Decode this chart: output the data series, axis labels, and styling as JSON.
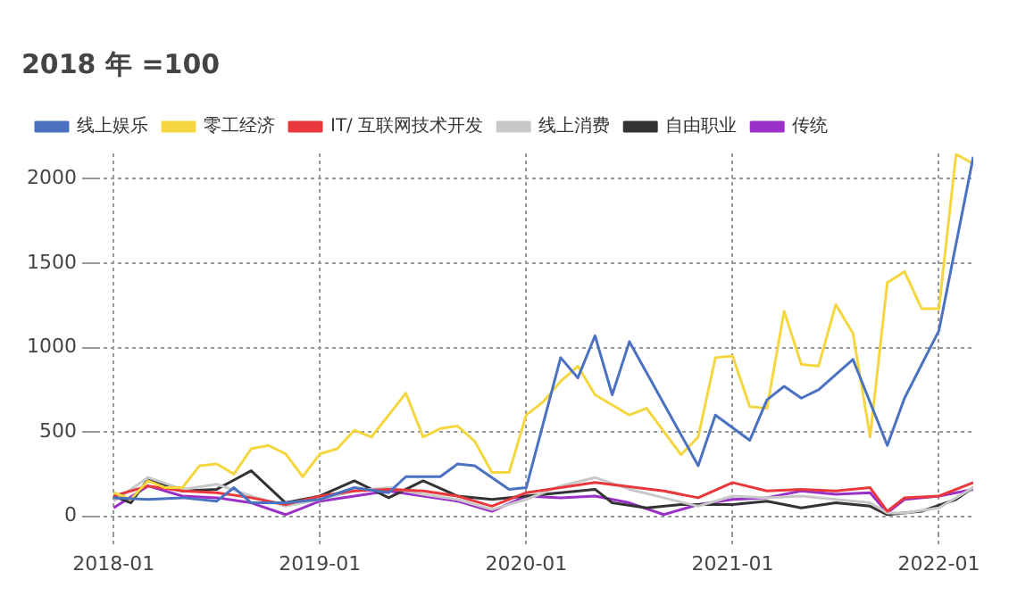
{
  "chart_data": {
    "type": "line",
    "title": "2018 年 =100",
    "legend": "top",
    "grid": true,
    "marker": "none",
    "line_style": "solid",
    "xlim": [
      "2017-12",
      "2022-03"
    ],
    "xticks": [
      "2018-01",
      "2019-01",
      "2020-01",
      "2021-01",
      "2022-01"
    ],
    "ylim": [
      -100,
      2150
    ],
    "yticks": [
      0,
      500,
      1000,
      1500,
      2000
    ],
    "series": [
      {
        "name": "线上娱乐",
        "color": "#4a72c0",
        "x": [
          "2018-01",
          "2018-03",
          "2018-05",
          "2018-07",
          "2018-08",
          "2018-09",
          "2018-11",
          "2019-01",
          "2019-03",
          "2019-05",
          "2019-06",
          "2019-08",
          "2019-09",
          "2019-10",
          "2019-12",
          "2020-01",
          "2020-03",
          "2020-04",
          "2020-05",
          "2020-06",
          "2020-07",
          "2020-11",
          "2020-12",
          "2021-02",
          "2021-03",
          "2021-04",
          "2021-05",
          "2021-06",
          "2021-08",
          "2021-10",
          "2021-11",
          "2022-01",
          "2022-03"
        ],
        "values": [
          110,
          100,
          110,
          90,
          170,
          80,
          80,
          100,
          170,
          140,
          235,
          235,
          310,
          300,
          160,
          170,
          940,
          820,
          1070,
          720,
          1035,
          300,
          600,
          450,
          690,
          770,
          700,
          750,
          930,
          420,
          700,
          1100,
          2130
        ]
      },
      {
        "name": "零工经济",
        "color": "#f5d63f",
        "x": [
          "2018-01",
          "2018-02",
          "2018-03",
          "2018-04",
          "2018-05",
          "2018-06",
          "2018-07",
          "2018-08",
          "2018-09",
          "2018-10",
          "2018-11",
          "2018-12",
          "2019-01",
          "2019-02",
          "2019-03",
          "2019-04",
          "2019-06",
          "2019-07",
          "2019-08",
          "2019-09",
          "2019-10",
          "2019-11",
          "2019-12",
          "2020-01",
          "2020-02",
          "2020-03",
          "2020-04",
          "2020-05",
          "2020-07",
          "2020-08",
          "2020-10",
          "2020-11",
          "2020-12",
          "2021-01",
          "2021-02",
          "2021-03",
          "2021-04",
          "2021-05",
          "2021-06",
          "2021-07",
          "2021-08",
          "2021-09",
          "2021-10",
          "2021-11",
          "2021-12",
          "2022-01",
          "2022-02",
          "2022-03"
        ],
        "values": [
          140,
          100,
          210,
          170,
          170,
          300,
          310,
          250,
          400,
          420,
          370,
          235,
          370,
          400,
          510,
          470,
          730,
          470,
          520,
          535,
          445,
          260,
          260,
          600,
          680,
          800,
          890,
          720,
          600,
          640,
          365,
          470,
          940,
          950,
          650,
          640,
          1215,
          900,
          890,
          1255,
          1085,
          470,
          1385,
          1450,
          1230,
          1230,
          2145,
          2090
        ]
      },
      {
        "name": "IT/ 互联网技术开发",
        "color": "#e8383b",
        "x": [
          "2018-01",
          "2018-03",
          "2018-05",
          "2018-07",
          "2018-09",
          "2018-11",
          "2019-01",
          "2019-03",
          "2019-05",
          "2019-07",
          "2019-09",
          "2019-11",
          "2020-01",
          "2020-05",
          "2020-09",
          "2020-11",
          "2021-01",
          "2021-03",
          "2021-05",
          "2021-07",
          "2021-09",
          "2021-10",
          "2021-11",
          "2022-01",
          "2022-03"
        ],
        "values": [
          120,
          180,
          150,
          140,
          110,
          70,
          120,
          150,
          160,
          150,
          120,
          60,
          140,
          200,
          150,
          110,
          200,
          150,
          160,
          150,
          170,
          30,
          110,
          120,
          200
        ]
      },
      {
        "name": "线上消费",
        "color": "#c8c8c8",
        "x": [
          "2018-01",
          "2018-03",
          "2018-05",
          "2018-07",
          "2018-09",
          "2018-11",
          "2019-01",
          "2019-03",
          "2019-05",
          "2019-07",
          "2019-09",
          "2019-11",
          "2020-01",
          "2020-03",
          "2020-05",
          "2020-07",
          "2020-09",
          "2020-11",
          "2021-01",
          "2021-03",
          "2021-05",
          "2021-07",
          "2021-09",
          "2021-10",
          "2021-11",
          "2022-01",
          "2022-03"
        ],
        "values": [
          90,
          230,
          160,
          190,
          120,
          60,
          100,
          150,
          170,
          130,
          100,
          40,
          100,
          180,
          230,
          160,
          110,
          60,
          120,
          110,
          120,
          100,
          80,
          20,
          20,
          50,
          170
        ]
      },
      {
        "name": "自由职业",
        "color": "#333333",
        "x": [
          "2018-01",
          "2018-02",
          "2018-03",
          "2018-05",
          "2018-07",
          "2018-09",
          "2018-11",
          "2019-01",
          "2019-03",
          "2019-05",
          "2019-07",
          "2019-09",
          "2019-11",
          "2020-01",
          "2020-03",
          "2020-05",
          "2020-06",
          "2020-08",
          "2020-10",
          "2021-01",
          "2021-03",
          "2021-05",
          "2021-07",
          "2021-09",
          "2021-10",
          "2021-12",
          "2022-02",
          "2022-03"
        ],
        "values": [
          120,
          80,
          220,
          150,
          160,
          270,
          80,
          120,
          210,
          110,
          210,
          120,
          100,
          120,
          140,
          160,
          80,
          50,
          70,
          70,
          90,
          50,
          80,
          60,
          10,
          30,
          100,
          170
        ]
      },
      {
        "name": "传统",
        "color": "#9b30c8",
        "x": [
          "2018-01",
          "2018-03",
          "2018-05",
          "2018-07",
          "2018-09",
          "2018-11",
          "2019-01",
          "2019-03",
          "2019-05",
          "2019-07",
          "2019-09",
          "2019-11",
          "2020-01",
          "2020-03",
          "2020-05",
          "2020-07",
          "2020-09",
          "2020-11",
          "2021-01",
          "2021-03",
          "2021-05",
          "2021-07",
          "2021-09",
          "2021-10",
          "2021-11",
          "2022-01",
          "2022-03"
        ],
        "values": [
          50,
          180,
          120,
          110,
          80,
          10,
          90,
          120,
          150,
          120,
          90,
          30,
          120,
          110,
          120,
          80,
          10,
          70,
          100,
          110,
          150,
          130,
          140,
          20,
          100,
          120,
          160
        ]
      }
    ]
  }
}
